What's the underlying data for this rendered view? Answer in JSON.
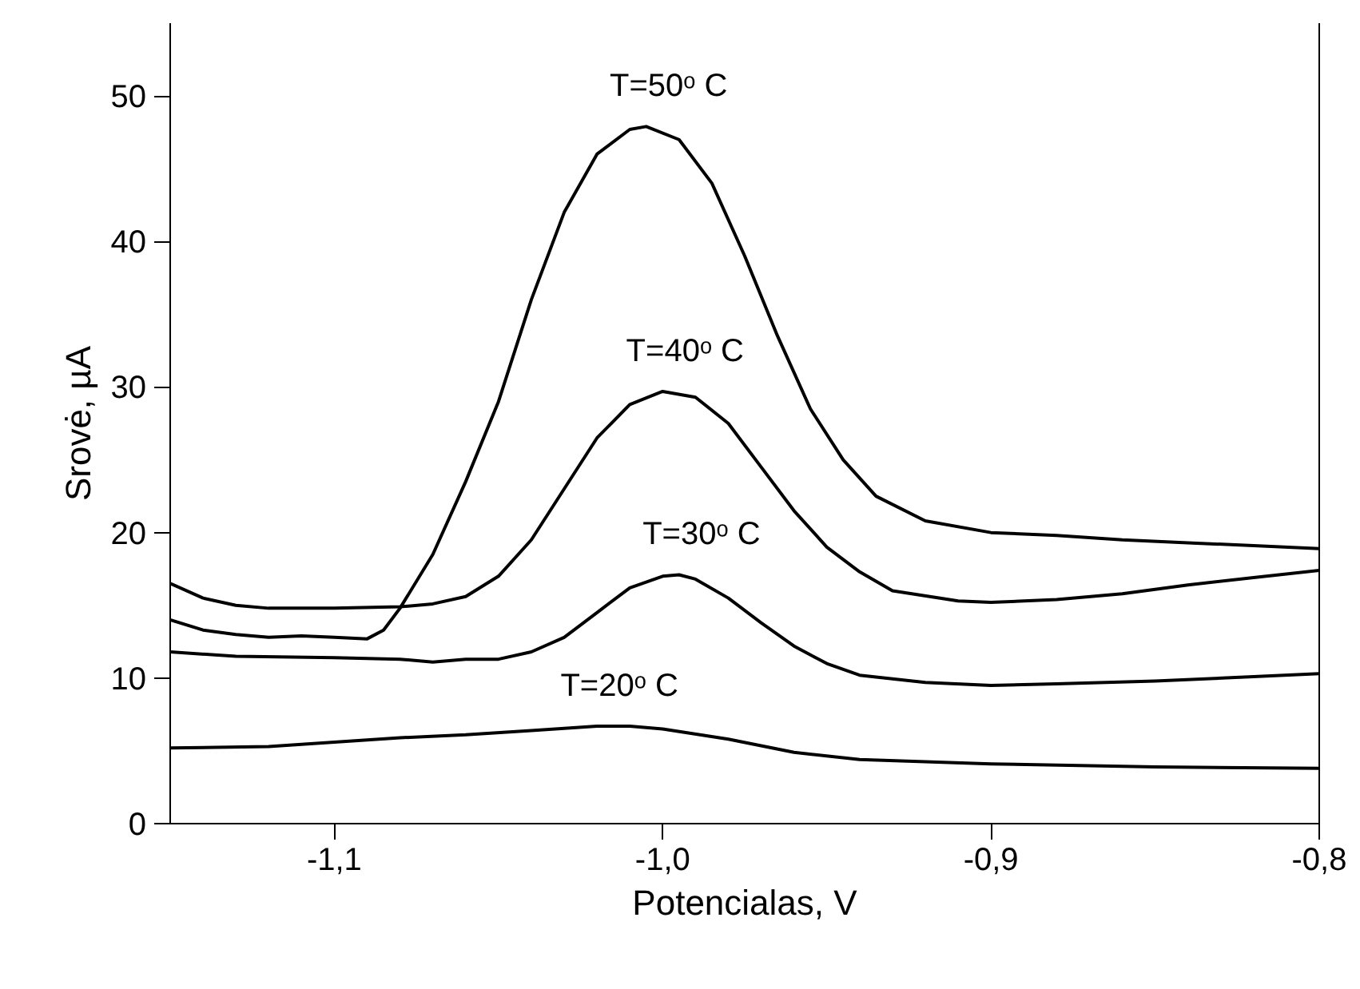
{
  "chart_data": {
    "type": "line",
    "xlabel": "Potencialas, V",
    "ylabel": "Srovė, µA",
    "xlim": [
      -1.15,
      -0.8
    ],
    "ylim": [
      0,
      55
    ],
    "xticks": [
      {
        "value": -1.1,
        "label": "-1,1"
      },
      {
        "value": -1.0,
        "label": "-1,0"
      },
      {
        "value": -0.9,
        "label": "-0,9"
      },
      {
        "value": -0.8,
        "label": "-0,8"
      }
    ],
    "yticks": [
      0,
      10,
      20,
      30,
      40,
      50
    ],
    "grid": false,
    "marker": "none",
    "line_style": "solid",
    "series": [
      {
        "color": "#000000",
        "x": [
          -1.15,
          -1.14,
          -1.13,
          -1.12,
          -1.11,
          -1.1,
          -1.09,
          -1.085,
          -1.08,
          -1.07,
          -1.06,
          -1.05,
          -1.04,
          -1.03,
          -1.02,
          -1.01,
          -1.005,
          -0.995,
          -0.985,
          -0.975,
          -0.965,
          -0.955,
          -0.945,
          -0.935,
          -0.92,
          -0.9,
          -0.88,
          -0.86,
          -0.84,
          -0.82,
          -0.8
        ],
        "values": [
          14.0,
          13.3,
          13.0,
          12.8,
          12.9,
          12.8,
          12.7,
          13.3,
          14.8,
          18.5,
          23.5,
          29,
          36,
          42,
          46,
          47.7,
          47.9,
          47,
          44,
          39,
          33.5,
          28.5,
          25,
          22.5,
          20.8,
          20.0,
          19.8,
          19.5,
          19.3,
          19.1,
          18.9
        ]
      },
      {
        "color": "#000000",
        "x": [
          -1.15,
          -1.14,
          -1.13,
          -1.12,
          -1.1,
          -1.08,
          -1.07,
          -1.06,
          -1.05,
          -1.04,
          -1.03,
          -1.02,
          -1.01,
          -1.0,
          -0.99,
          -0.98,
          -0.97,
          -0.96,
          -0.95,
          -0.94,
          -0.93,
          -0.91,
          -0.9,
          -0.88,
          -0.86,
          -0.84,
          -0.82,
          -0.8
        ],
        "values": [
          16.5,
          15.5,
          15.0,
          14.8,
          14.8,
          14.9,
          15.1,
          15.6,
          17,
          19.5,
          23,
          26.5,
          28.8,
          29.7,
          29.3,
          27.5,
          24.5,
          21.5,
          19,
          17.3,
          16.0,
          15.3,
          15.2,
          15.4,
          15.8,
          16.4,
          16.9,
          17.4
        ]
      },
      {
        "color": "#000000",
        "x": [
          -1.15,
          -1.13,
          -1.1,
          -1.08,
          -1.07,
          -1.06,
          -1.05,
          -1.04,
          -1.03,
          -1.02,
          -1.01,
          -1.0,
          -0.995,
          -0.99,
          -0.98,
          -0.97,
          -0.96,
          -0.95,
          -0.94,
          -0.92,
          -0.9,
          -0.88,
          -0.85,
          -0.82,
          -0.8
        ],
        "values": [
          11.8,
          11.5,
          11.4,
          11.3,
          11.1,
          11.3,
          11.3,
          11.8,
          12.8,
          14.5,
          16.2,
          17.0,
          17.1,
          16.8,
          15.5,
          13.8,
          12.2,
          11.0,
          10.2,
          9.7,
          9.5,
          9.6,
          9.8,
          10.1,
          10.3
        ]
      },
      {
        "color": "#000000",
        "x": [
          -1.15,
          -1.12,
          -1.1,
          -1.08,
          -1.06,
          -1.04,
          -1.02,
          -1.01,
          -1.0,
          -0.98,
          -0.96,
          -0.94,
          -0.9,
          -0.85,
          -0.8
        ],
        "values": [
          5.2,
          5.3,
          5.6,
          5.9,
          6.1,
          6.4,
          6.7,
          6.7,
          6.5,
          5.8,
          4.9,
          4.4,
          4.1,
          3.9,
          3.8
        ]
      }
    ],
    "annotations": [
      "T=50ᵒ C",
      "T=40ᵒ C",
      "T=30ᵒ C",
      "T=20ᵒ C"
    ]
  }
}
